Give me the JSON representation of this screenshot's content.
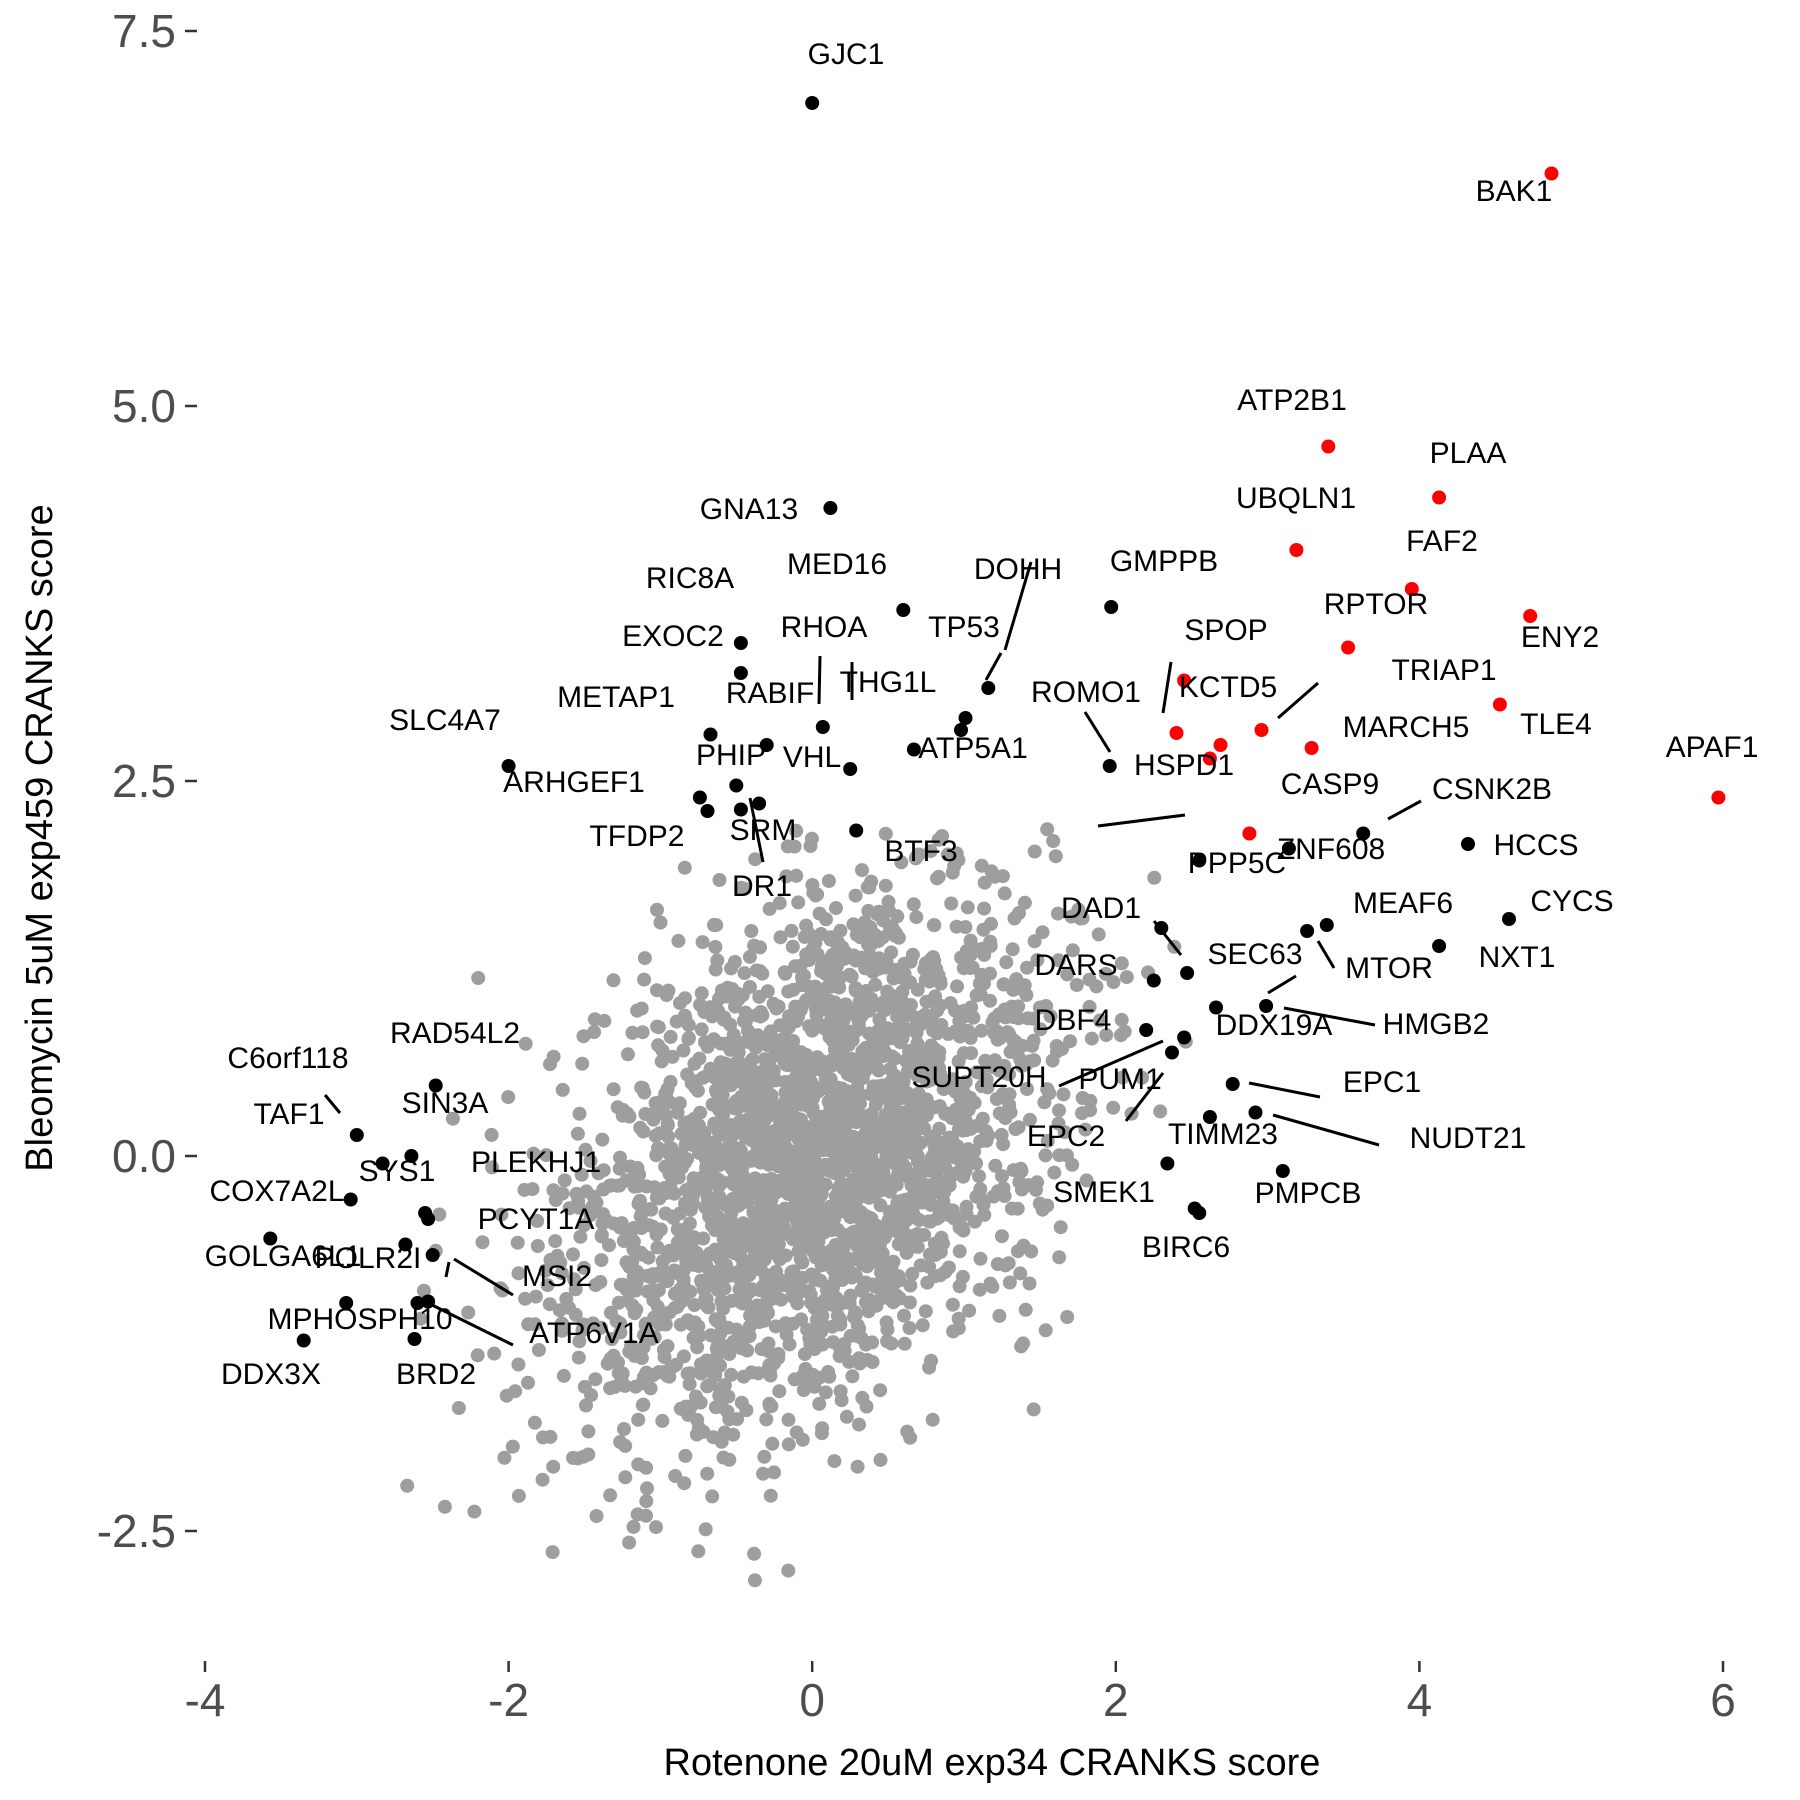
{
  "colors": {
    "background": "#000000",
    "highlight": "#ff0000",
    "labeled": "#000000",
    "tick_text": "#4d4d4d"
  },
  "chart_data": {
    "type": "scatter",
    "xlabel": "Rotenone 20uM exp34 CRANKS score",
    "ylabel": "Bleomycin 5uM exp459 CRANKS score",
    "xlim": [
      -4,
      6
    ],
    "ylim": [
      -2.5,
      7.5
    ],
    "xticks": [
      -4,
      -2,
      0,
      2,
      4,
      6
    ],
    "xtick_labels": [
      "-4",
      "-2",
      "0",
      "2",
      "4",
      "6"
    ],
    "yticks": [
      -2.5,
      0.0,
      2.5,
      5.0,
      7.5
    ],
    "ytick_labels": [
      "-2.5",
      "0.0",
      "2.5",
      "5.0",
      "7.5"
    ],
    "grid": false,
    "legend": "none",
    "background_points": {
      "color": "#9e9e9e",
      "count": 2600,
      "note_distribution": "dense cloud centered near (0, 0)"
    },
    "highlighted_points": [
      {
        "label": "BAK1",
        "x": 4.87,
        "y": 6.55
      },
      {
        "label": "ATP2B1",
        "x": 3.4,
        "y": 4.73
      },
      {
        "label": "PLAA",
        "x": 4.13,
        "y": 4.39
      },
      {
        "label": "UBQLN1",
        "x": 3.19,
        "y": 4.04
      },
      {
        "label": "FAF2",
        "x": 3.95,
        "y": 3.78
      },
      {
        "label": "ENY2",
        "x": 4.73,
        "y": 3.6
      },
      {
        "label": "RPTOR",
        "x": 3.53,
        "y": 3.39
      },
      {
        "label": "SPOP",
        "x": 2.45,
        "y": 3.17
      },
      {
        "label": "TLE4",
        "x": 4.53,
        "y": 3.01
      },
      {
        "label": "KCTD5",
        "x": 2.4,
        "y": 2.82
      },
      {
        "label": "TRIAP1",
        "x": 2.96,
        "y": 2.84
      },
      {
        "label": "MARCH5",
        "x": 3.29,
        "y": 2.72
      },
      {
        "label": "HSPD1",
        "x": 2.62,
        "y": 2.65
      },
      {
        "label": "ROMO1 (red)",
        "x": 2.69,
        "y": 2.74
      },
      {
        "label": "APAF1",
        "x": 5.97,
        "y": 2.39
      },
      {
        "label": "CASP9",
        "x": 2.88,
        "y": 2.15
      }
    ],
    "labeled_points": [
      {
        "label": "GJC1",
        "x": 0.0,
        "y": 7.02
      },
      {
        "label": "GNA13",
        "x": 0.12,
        "y": 4.32
      },
      {
        "label": "MED16",
        "x": 0.6,
        "y": 3.64
      },
      {
        "label": "GMPPB",
        "x": 1.97,
        "y": 3.66
      },
      {
        "label": "RIC8A",
        "x": -0.47,
        "y": 3.42
      },
      {
        "label": "EXOC2",
        "x": -0.47,
        "y": 3.22
      },
      {
        "label": "DOHH",
        "x": 1.16,
        "y": 3.12
      },
      {
        "label": "TP53",
        "x": 1.01,
        "y": 2.92
      },
      {
        "label": "RHOA",
        "x": 0.07,
        "y": 2.86
      },
      {
        "label": "THG1L",
        "x": 0.98,
        "y": 2.84
      },
      {
        "label": "RABIF",
        "x": -0.3,
        "y": 2.74
      },
      {
        "label": "METAP1",
        "x": -0.67,
        "y": 2.81
      },
      {
        "label": "SLC4A7",
        "x": -2.0,
        "y": 2.6
      },
      {
        "label": "VHL",
        "x": 0.25,
        "y": 2.58
      },
      {
        "label": "ATP5A1",
        "x": 0.67,
        "y": 2.71
      },
      {
        "label": "ROMO1",
        "x": 1.96,
        "y": 2.6
      },
      {
        "label": "PHIP",
        "x": -0.5,
        "y": 2.47
      },
      {
        "label": "ARHGEF1",
        "x": -0.74,
        "y": 2.39
      },
      {
        "label": "CSNK2B",
        "x": 3.63,
        "y": 2.15
      },
      {
        "label": "HCCS",
        "x": 4.32,
        "y": 2.08
      },
      {
        "label": "ZNF608",
        "x": 3.14,
        "y": 2.05
      },
      {
        "label": "SRM",
        "x": -0.47,
        "y": 2.31
      },
      {
        "label": "BTF3",
        "x": 0.29,
        "y": 2.17
      },
      {
        "label": "TFDP2",
        "x": -0.69,
        "y": 2.3
      },
      {
        "label": "DR1",
        "x": -0.35,
        "y": 2.35
      },
      {
        "label": "PPP5C",
        "x": 2.55,
        "y": 1.97
      },
      {
        "label": "CYCS",
        "x": 4.59,
        "y": 1.58
      },
      {
        "label": "MEAF6",
        "x": 3.39,
        "y": 1.54
      },
      {
        "label": "MTOR",
        "x": 3.26,
        "y": 1.5
      },
      {
        "label": "NXT1",
        "x": 4.13,
        "y": 1.4
      },
      {
        "label": "DAD1",
        "x": 2.3,
        "y": 1.52
      },
      {
        "label": "SEC63",
        "x": 2.47,
        "y": 1.22
      },
      {
        "label": "DARS",
        "x": 2.25,
        "y": 1.17
      },
      {
        "label": "HMGB2",
        "x": 2.99,
        "y": 1.0
      },
      {
        "label": "DDX19A",
        "x": 2.66,
        "y": 0.99
      },
      {
        "label": "DBF4",
        "x": 2.2,
        "y": 0.84
      },
      {
        "label": "SUPT20H",
        "x": 2.37,
        "y": 0.69
      },
      {
        "label": "PUM1",
        "x": 2.45,
        "y": 0.79
      },
      {
        "label": "EPC1",
        "x": 2.77,
        "y": 0.48
      },
      {
        "label": "EPC2",
        "x": 2.62,
        "y": 0.26
      },
      {
        "label": "NUDT21",
        "x": 2.92,
        "y": 0.29
      },
      {
        "label": "TIMM23",
        "x": 2.34,
        "y": -0.05
      },
      {
        "label": "PMPCB",
        "x": 3.1,
        "y": -0.1
      },
      {
        "label": "SMEK1",
        "x": 2.52,
        "y": -0.35
      },
      {
        "label": "BIRC6",
        "x": 2.55,
        "y": -0.38
      },
      {
        "label": "C6orf118",
        "x": -3.0,
        "y": 0.14
      },
      {
        "label": "RAD54L2",
        "x": -2.48,
        "y": 0.47
      },
      {
        "label": "SIN3A",
        "x": -2.64,
        "y": 0.0
      },
      {
        "label": "TAF1",
        "x": -2.83,
        "y": -0.05
      },
      {
        "label": "SYS1",
        "x": -2.55,
        "y": -0.38
      },
      {
        "label": "COX7A2L",
        "x": -3.04,
        "y": -0.29
      },
      {
        "label": "PLEKHJ1",
        "x": -2.53,
        "y": -0.42
      },
      {
        "label": "PCYT1A",
        "x": -2.68,
        "y": -0.59
      },
      {
        "label": "MSI2",
        "x": -2.5,
        "y": -0.66
      },
      {
        "label": "GOLGA6L1",
        "x": -3.57,
        "y": -0.55
      },
      {
        "label": "POLR2I",
        "x": -2.6,
        "y": -0.98
      },
      {
        "label": "DDX3X",
        "x": -3.07,
        "y": -0.98
      },
      {
        "label": "ATP6V1A",
        "x": -2.53,
        "y": -0.97
      },
      {
        "label": "MPHOSPH10",
        "x": -3.35,
        "y": -1.23
      },
      {
        "label": "BRD2",
        "x": -2.62,
        "y": -1.22
      }
    ]
  }
}
